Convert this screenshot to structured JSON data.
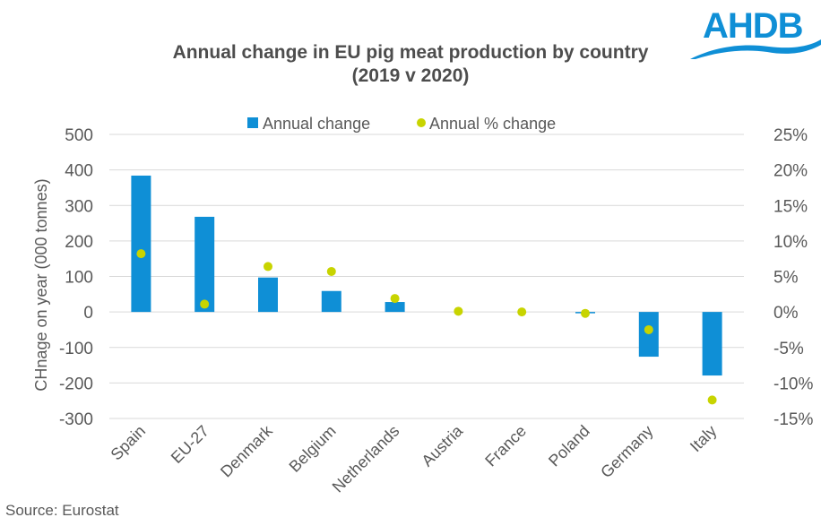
{
  "brand": {
    "logo_text": "AHDB",
    "color": "#0f8fd6"
  },
  "source": "Source: Eurostat",
  "chart_data": {
    "type": "bar",
    "title": "Annual change in EU pig meat production by country",
    "subtitle": "(2019 v 2020)",
    "categories": [
      "Spain",
      "EU-27",
      "Denmark",
      "Belgium",
      "Netherlands",
      "Austria",
      "France",
      "Poland",
      "Germany",
      "Italy"
    ],
    "series": [
      {
        "name": "Annual change",
        "type": "bar",
        "axis": "left",
        "color": "#0f8fd6",
        "values": [
          384,
          268,
          97,
          59,
          28,
          0,
          0,
          -3,
          -126,
          -179
        ]
      },
      {
        "name": "Annual % change",
        "type": "scatter",
        "axis": "right",
        "color": "#c8d400",
        "values": [
          8.2,
          1.1,
          6.4,
          5.7,
          1.9,
          0.1,
          0.0,
          -0.2,
          -2.5,
          -12.4
        ]
      }
    ],
    "ylabel": "CHnage on year (000 tonnes)",
    "ylim": [
      -300,
      500
    ],
    "yticks": [
      "500",
      "400",
      "300",
      "200",
      "100",
      "0",
      "-100",
      "-200",
      "-300"
    ],
    "y2lim": [
      -15,
      25
    ],
    "y2ticks": [
      "25%",
      "20%",
      "15%",
      "10%",
      "5%",
      "0%",
      "-5%",
      "-10%",
      "-15%"
    ],
    "grid": true,
    "legend": "top-center"
  }
}
